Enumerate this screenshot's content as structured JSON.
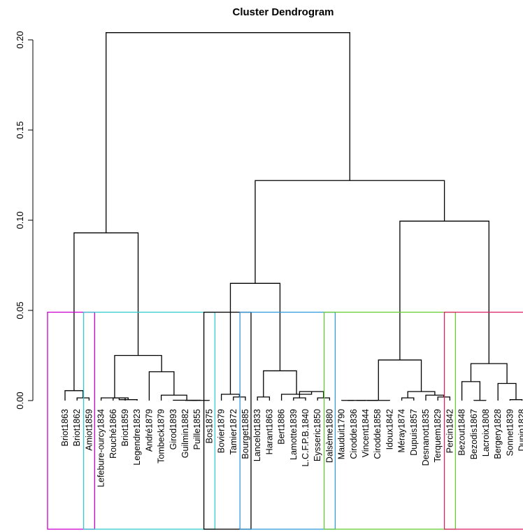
{
  "chart_data": {
    "type": "dendrogram",
    "title": "Cluster Dendrogram",
    "ylim": [
      0,
      0.215
    ],
    "yticks": [
      0.0,
      0.05,
      0.1,
      0.15,
      0.2
    ],
    "ytick_labels": [
      "0.00",
      "0.05",
      "0.10",
      "0.15",
      "0.20"
    ],
    "leaves": [
      "Briot1863",
      "Briot1862",
      "Amiot1859",
      "Lefebure-ourcy1834",
      "Rouché1866",
      "Briot1859",
      "Legendre1823",
      "André1879",
      "Tombeck1879",
      "Girod1893",
      "Guilmin1882",
      "Puille1855",
      "Bos1875",
      "Bovier1879",
      "Tamier1872",
      "Bourget1885",
      "Lancelot1833",
      "Harant1863",
      "Bert1886",
      "Lamotte1839",
      "L.C.F.P.B.1840",
      "Eysseric1850",
      "Dalsème1880",
      "Mauduit1790",
      "Cirodde1836",
      "Vincent1844",
      "Cirodde1858",
      "Idoux1842",
      "Méray1874",
      "Dupuis1857",
      "Desnanot1835",
      "Terquem1829",
      "Percin1842",
      "Bezout1848",
      "Bezodis1867",
      "Lacroix1808",
      "Bergery1828",
      "Sonnet1839",
      "Dupin1828"
    ],
    "merges": [
      {
        "a": "L:1",
        "b": "L:2",
        "h": 0.0015
      },
      {
        "a": "L:0",
        "b": "N:0",
        "h": 0.0055
      },
      {
        "a": "L:4",
        "b": "L:5",
        "h": 0.0015
      },
      {
        "a": "N:2",
        "b": "L:6",
        "h": 0.0005
      },
      {
        "a": "L:3",
        "b": "N:3",
        "h": 0.0015
      },
      {
        "a": "L:10",
        "b": "L:11",
        "h": 0.0001
      },
      {
        "a": "N:5",
        "b": "L:12",
        "h": 0.0001
      },
      {
        "a": "L:9",
        "b": "N:6",
        "h": 0.0002
      },
      {
        "a": "L:8",
        "b": "N:7",
        "h": 0.003
      },
      {
        "a": "L:7",
        "b": "N:8",
        "h": 0.016
      },
      {
        "a": "N:4",
        "b": "N:9",
        "h": 0.025
      },
      {
        "a": "N:1",
        "b": "N:10",
        "h": 0.093
      },
      {
        "a": "L:14",
        "b": "L:15",
        "h": 0.002
      },
      {
        "a": "L:13",
        "b": "N:12",
        "h": 0.0035
      },
      {
        "a": "L:16",
        "b": "L:17",
        "h": 0.002
      },
      {
        "a": "L:19",
        "b": "L:20",
        "h": 0.0015
      },
      {
        "a": "L:21",
        "b": "L:22",
        "h": 0.0015
      },
      {
        "a": "N:15",
        "b": "N:16",
        "h": 0.005
      },
      {
        "a": "L:18",
        "b": "N:17",
        "h": 0.0035
      },
      {
        "a": "N:14",
        "b": "N:18",
        "h": 0.0165
      },
      {
        "a": "N:13",
        "b": "N:19",
        "h": 0.065
      },
      {
        "a": "L:23",
        "b": "L:24",
        "h": 0.0001
      },
      {
        "a": "N:21",
        "b": "L:25",
        "h": 0.0001
      },
      {
        "a": "N:22",
        "b": "L:26",
        "h": 0.0001
      },
      {
        "a": "N:23",
        "b": "L:27",
        "h": 0.0001
      },
      {
        "a": "L:28",
        "b": "L:29",
        "h": 0.0015
      },
      {
        "a": "L:31",
        "b": "L:32",
        "h": 0.002
      },
      {
        "a": "L:30",
        "b": "N:26",
        "h": 0.003
      },
      {
        "a": "N:25",
        "b": "N:27",
        "h": 0.005
      },
      {
        "a": "N:24",
        "b": "N:28",
        "h": 0.0225
      },
      {
        "a": "L:34",
        "b": "L:35",
        "h": 0.0001
      },
      {
        "a": "L:33",
        "b": "N:30",
        "h": 0.0105
      },
      {
        "a": "L:37",
        "b": "L:38",
        "h": 0.0005
      },
      {
        "a": "L:36",
        "b": "N:32",
        "h": 0.0095
      },
      {
        "a": "N:31",
        "b": "N:33",
        "h": 0.0205
      },
      {
        "a": "L:35",
        "b": "L:35",
        "h": 0.0
      },
      {
        "a": "N:29",
        "b": "N:34",
        "h": 0.0995
      },
      {
        "a": "N:20",
        "b": "N:36",
        "h": 0.122
      },
      {
        "a": "N:11",
        "b": "N:37",
        "h": 0.204
      }
    ],
    "clusters": [
      {
        "from": 0,
        "to": 2,
        "color": "#cc00cc"
      },
      {
        "from": 3,
        "to": 12,
        "color": "#33cccc"
      },
      {
        "from": 13,
        "to": 15,
        "color": "#000000"
      },
      {
        "from": 16,
        "to": 22,
        "color": "#3399dd"
      },
      {
        "from": 23,
        "to": 32,
        "color": "#66cc33"
      },
      {
        "from": 33,
        "to": 38,
        "color": "#dd2266"
      }
    ],
    "cut_height": 0.049
  }
}
